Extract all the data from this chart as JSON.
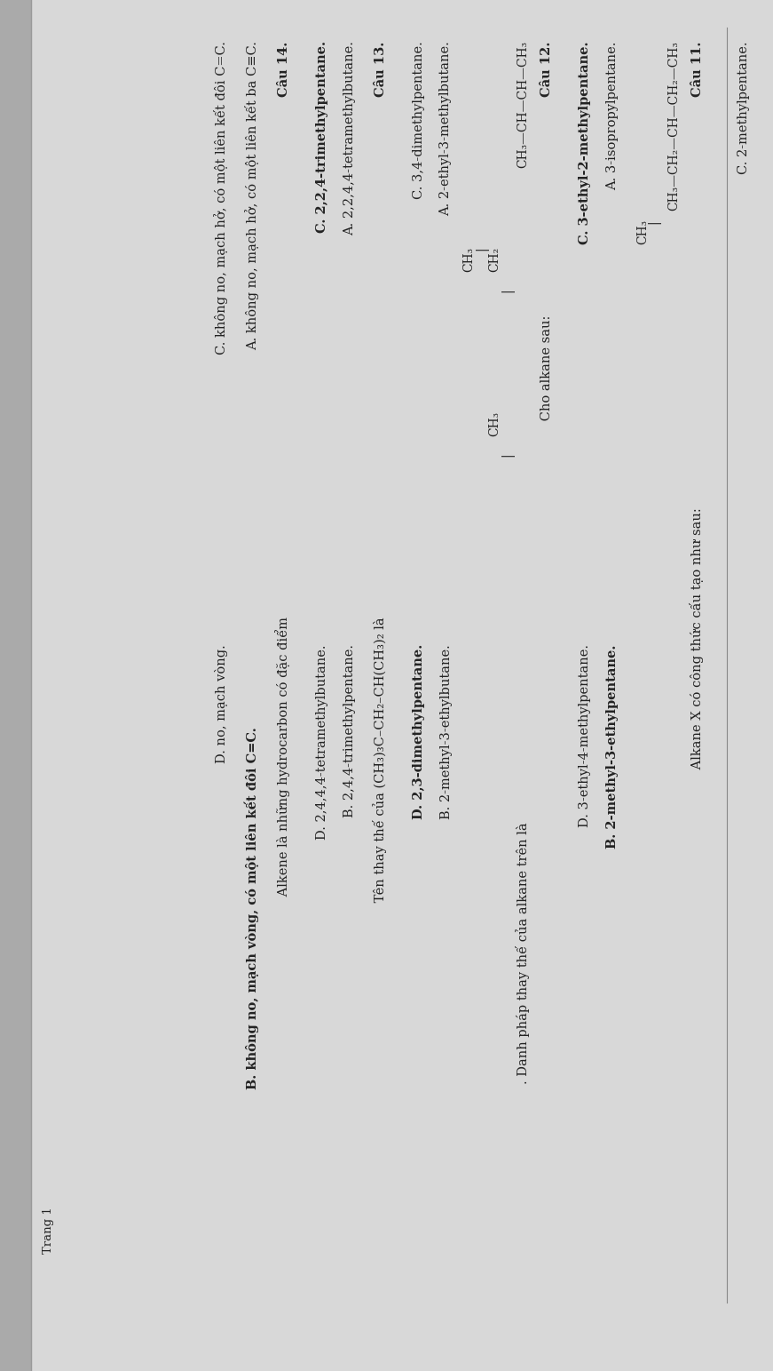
{
  "bg_color": "#d8d8d8",
  "text_color": "#222222",
  "page_width": 8.71,
  "page_height": 15.43,
  "rotation": 90,
  "header": "C. 2-methylpentane.",
  "q11_label": "Câu 11.",
  "q11_text": " Alkane X có công thức cấu tạo như sau:",
  "q11_formula_top": "CH₃—CH₂—CH—CH₂—CH₃",
  "q11_formula_branch_bar": "|",
  "q11_formula_branch": "CH₃",
  "q11_A": "A. 3-isopropylpentane.",
  "q11_B": "B. 2-methyl-3-ethylpentane.",
  "q11_C": "C. 3-ethyl-2-methylpentane.",
  "q11_D": "D. 3-ethyl-4-methylpentane.",
  "q11_B_bold": true,
  "q11_C_bold": true,
  "q12_label": "Câu 12.",
  "q12_text": " Cho alkane sau:",
  "q12_formula_top": "CH₃—CH—CH—CH₃",
  "q12_branch1_bar": "|",
  "q12_branch1": "CH₂",
  "q12_branch2_bar": "|",
  "q12_branch2": "CH₃",
  "q12_branch3_bar": "|",
  "q12_branch3": "CH₃",
  "q12_danh_phap": ". Danh pháp thay thế của alkane trên là",
  "q12_A": "A. 2-ethyl-3-methylbutane.",
  "q12_B": "B. 2-methyl-3-ethylbutane.",
  "q12_C": "C. 3,4-dimethylpentane.",
  "q12_D": "D. 2,3-dimethylpentane.",
  "q12_D_bold": true,
  "q13_label": "Câu 13.",
  "q13_text": " Tên thay thế của (CH₃)₃C–CH₂–CH(CH₃)₂ là",
  "q13_A": "A. 2,2,4,4-tetramethylbutane.",
  "q13_B": "B. 2,4,4-trimethylpentane.",
  "q13_C": "C. 2,2,4-trimethylpentane.",
  "q13_D": "D. 2,4,4,4-tetramethylbutane.",
  "q13_C_bold": true,
  "q14_label": "Câu 14.",
  "q14_text": " Alkene là những hydrocarbon có đặc điểm",
  "q14_A": "A. không no, mạch hở, có một liên kết ba C≡C.",
  "q14_B": "B. không no, mạch vòng, có một liên kết đôi C=C.",
  "q14_C": "C. không no, mạch hở, có một liên kết đôi C=C.",
  "q14_D": "D. no, mạch vòng.",
  "q14_B_bold": true,
  "page_label": "Trang 1"
}
